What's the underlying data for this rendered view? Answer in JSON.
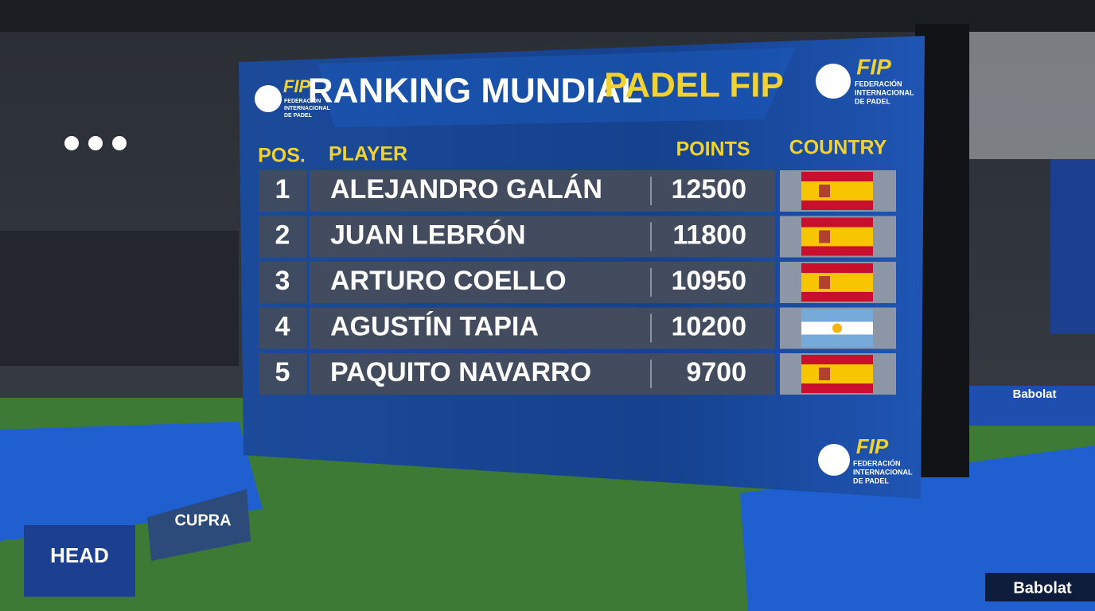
{
  "board": {
    "title": {
      "main": "RANKING MUNDIAL",
      "accent": "PADEL FIP"
    },
    "logo": {
      "name": "FIP",
      "lines": [
        "FEDERACIÓN",
        "INTERNACIONAL",
        "DE PADEL"
      ]
    },
    "table": {
      "headers": [
        "POS.",
        "PLAYER",
        "POINTS",
        "COUNTRY"
      ],
      "rows": [
        [
          1,
          "ALEJANDRO GALÁN",
          12500
        ],
        [
          2,
          "JUAN LEBRÓN",
          11800
        ],
        [
          3,
          "ARTURO COELLO",
          10950
        ],
        [
          4,
          "AGUSTÍN TAPIA",
          10200
        ],
        [
          5,
          "PAQUITO NAVARRO",
          9700
        ]
      ]
    }
  },
  "signs": [
    "HEAD",
    "CUPRA",
    "Babolat"
  ]
}
